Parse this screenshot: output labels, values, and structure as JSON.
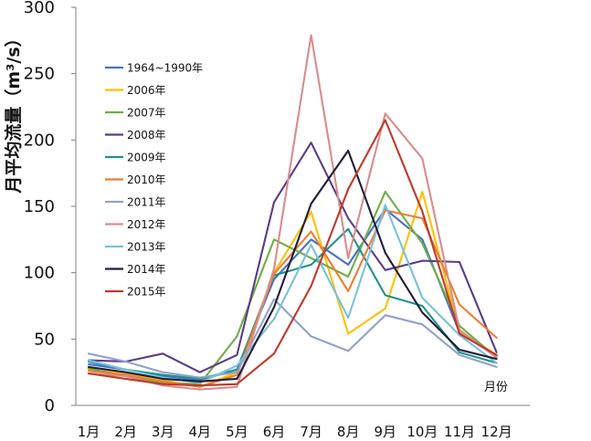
{
  "chart_data": {
    "type": "line",
    "title": "",
    "ylabel": "月平均流量（m³/s）",
    "xlabel": "月份",
    "ylim": [
      0,
      300
    ],
    "yticks": [
      0,
      50,
      100,
      150,
      200,
      250,
      300
    ],
    "categories": [
      "1月",
      "2月",
      "3月",
      "4月",
      "5月",
      "6月",
      "7月",
      "8月",
      "9月",
      "10月",
      "11月",
      "12月"
    ],
    "grid": false,
    "legend_position": "top-left",
    "series": [
      {
        "name": "1964~1990年",
        "color": "#4472C4",
        "values": [
          31,
          27,
          22,
          19,
          27,
          95,
          125,
          106,
          148,
          125,
          55,
          37
        ]
      },
      {
        "name": "2006年",
        "color": "#FFC000",
        "values": [
          27,
          24,
          19,
          14,
          25,
          100,
          146,
          54,
          73,
          161,
          56,
          38
        ]
      },
      {
        "name": "2007年",
        "color": "#70AD47",
        "values": [
          28,
          22,
          17,
          16,
          52,
          125,
          111,
          97,
          161,
          122,
          60,
          36
        ]
      },
      {
        "name": "2008年",
        "color": "#5B3C88",
        "values": [
          34,
          33,
          39,
          25,
          38,
          153,
          198,
          141,
          102,
          109,
          108,
          40
        ]
      },
      {
        "name": "2009年",
        "color": "#21908C",
        "values": [
          33,
          27,
          23,
          20,
          27,
          98,
          106,
          133,
          83,
          75,
          40,
          32
        ]
      },
      {
        "name": "2010年",
        "color": "#ED7D31",
        "values": [
          26,
          23,
          18,
          14,
          23,
          99,
          131,
          86,
          147,
          141,
          76,
          51
        ]
      },
      {
        "name": "2011年",
        "color": "#8FA2C9",
        "values": [
          39,
          33,
          25,
          21,
          25,
          80,
          52,
          41,
          68,
          61,
          38,
          29
        ]
      },
      {
        "name": "2012年",
        "color": "#D98C8C",
        "values": [
          24,
          22,
          15,
          12,
          14,
          103,
          279,
          111,
          220,
          186,
          57,
          36
        ]
      },
      {
        "name": "2013年",
        "color": "#7AC1DE",
        "values": [
          34,
          27,
          21,
          17,
          30,
          65,
          121,
          66,
          151,
          81,
          53,
          32
        ]
      },
      {
        "name": "2014年",
        "color": "#1F1D3A",
        "values": [
          29,
          25,
          20,
          18,
          20,
          74,
          152,
          192,
          115,
          70,
          42,
          35
        ]
      },
      {
        "name": "2015年",
        "color": "#C0392B",
        "values": [
          24,
          20,
          16,
          15,
          16,
          39,
          90,
          163,
          215,
          146,
          54,
          38
        ]
      }
    ]
  }
}
